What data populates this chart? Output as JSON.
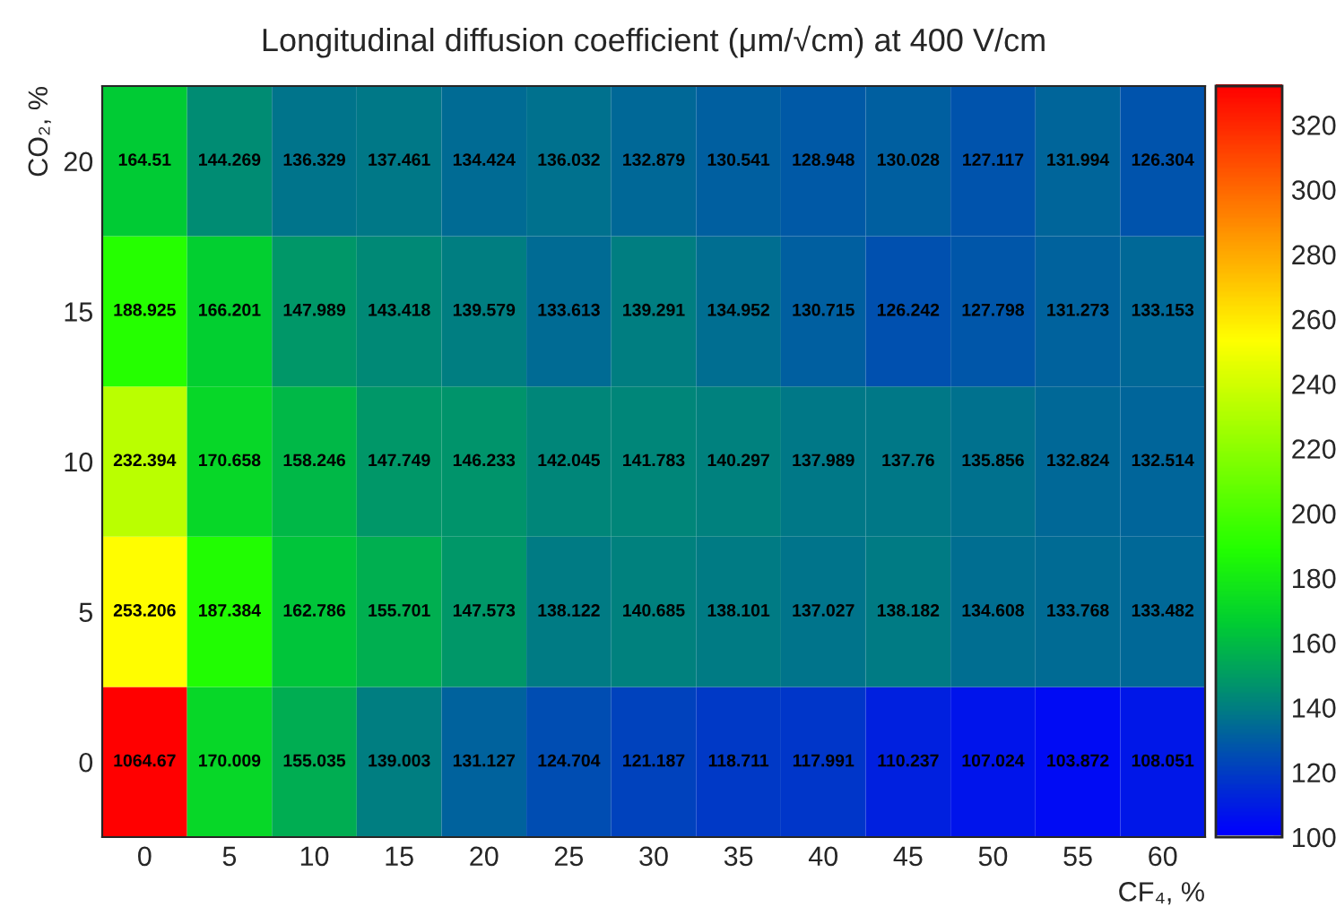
{
  "chart_data": {
    "type": "heatmap",
    "title": "Longitudinal diffusion coefficient (μm/√cm) at 400 V/cm",
    "xlabel": "CF₄, %",
    "ylabel": "CO₂, %",
    "categories": [
      "0",
      "5",
      "10",
      "15",
      "20",
      "25",
      "30",
      "35",
      "40",
      "45",
      "50",
      "55",
      "60"
    ],
    "y_categories": [
      "20",
      "15",
      "10",
      "5",
      "0"
    ],
    "cells": [
      [
        164.51,
        144.269,
        136.329,
        137.461,
        134.424,
        136.032,
        132.879,
        130.541,
        128.948,
        130.028,
        127.117,
        131.994,
        126.304
      ],
      [
        188.925,
        166.201,
        147.989,
        143.418,
        139.579,
        133.613,
        139.291,
        134.952,
        130.715,
        126.242,
        127.798,
        131.273,
        133.153
      ],
      [
        232.394,
        170.658,
        158.246,
        147.749,
        146.233,
        142.045,
        141.783,
        140.297,
        137.989,
        137.76,
        135.856,
        132.824,
        132.514
      ],
      [
        253.206,
        187.384,
        162.786,
        155.701,
        147.573,
        138.122,
        140.685,
        138.101,
        137.027,
        138.182,
        134.608,
        133.768,
        133.482
      ],
      [
        1064.67,
        170.009,
        155.035,
        139.003,
        131.127,
        124.704,
        121.187,
        118.711,
        117.991,
        110.237,
        107.024,
        103.872,
        108.051
      ]
    ],
    "data_labels": true,
    "clim": [
      100,
      332
    ],
    "cticks": [
      100,
      120,
      140,
      160,
      180,
      200,
      220,
      240,
      260,
      280,
      300,
      320
    ]
  }
}
